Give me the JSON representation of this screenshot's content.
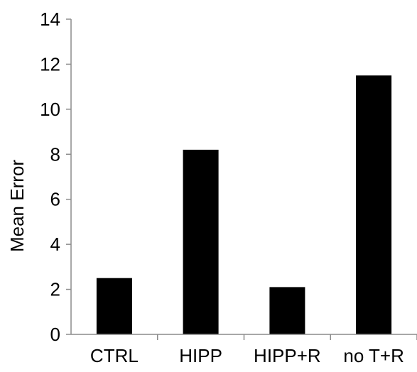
{
  "chart_data": {
    "type": "bar",
    "title": "",
    "xlabel": "",
    "ylabel": "Mean Error",
    "categories": [
      "CTRL",
      "HIPP",
      "HIPP+R",
      "no T+R"
    ],
    "values": [
      2.5,
      8.2,
      2.1,
      11.5
    ],
    "ylim": [
      0,
      14
    ],
    "yticks": [
      0,
      2,
      4,
      6,
      8,
      10,
      12,
      14
    ],
    "grid": false,
    "legend": "none",
    "bar_color": "#000000",
    "axis_color": "#8c8c8c"
  }
}
